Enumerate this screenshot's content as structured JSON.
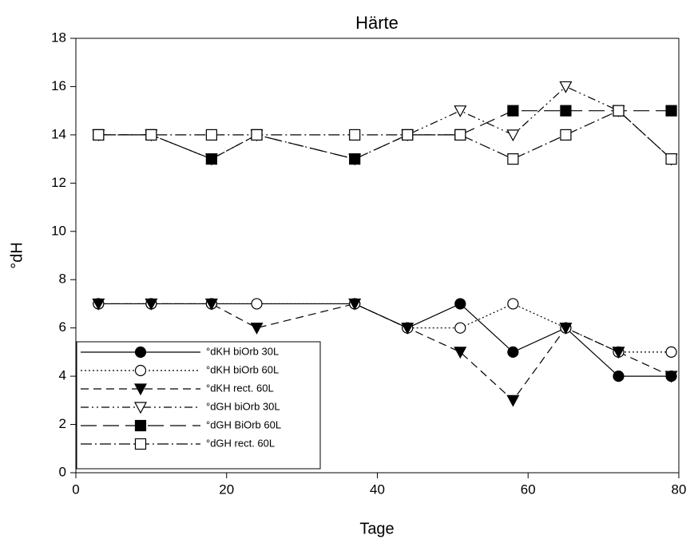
{
  "chart_data": {
    "type": "line",
    "title": "Härte",
    "x_label": "Tage",
    "y_label": "°dH",
    "xlim": [
      0,
      80
    ],
    "xticks": [
      0,
      20,
      40,
      60,
      80
    ],
    "ylim": [
      0,
      18
    ],
    "yticks": [
      0,
      2,
      4,
      6,
      8,
      10,
      12,
      14,
      16,
      18
    ],
    "legend": "lower left",
    "series": [
      {
        "name": "°dKH biOrb 30L",
        "color": "#000000",
        "marker": "circle",
        "filled": true,
        "dash": "solid",
        "x": [
          3,
          10,
          18,
          37,
          44,
          51,
          58,
          65,
          72,
          79
        ],
        "values": [
          7,
          7,
          7,
          7,
          6,
          7,
          5,
          6,
          4,
          4
        ]
      },
      {
        "name": "°dKH biOrb 60L",
        "color": "#000000",
        "marker": "circle",
        "filled": false,
        "dash": "dotted",
        "x": [
          3,
          10,
          18,
          24,
          37,
          44,
          51,
          58,
          65,
          72,
          79
        ],
        "values": [
          7,
          7,
          7,
          7,
          7,
          6,
          6,
          7,
          6,
          5,
          5
        ]
      },
      {
        "name": "°dKH rect. 60L",
        "color": "#000000",
        "marker": "triangle-down",
        "filled": true,
        "dash": "dashed",
        "x": [
          3,
          10,
          18,
          24,
          37,
          44,
          51,
          58,
          65,
          72,
          79
        ],
        "values": [
          7,
          7,
          7,
          6,
          7,
          6,
          5,
          3,
          6,
          5,
          4
        ]
      },
      {
        "name": "°dGH biOrb 30L",
        "color": "#000000",
        "marker": "triangle-down",
        "filled": false,
        "dash": "dash-dot-dot",
        "x": [
          3,
          10,
          18,
          24,
          37,
          44,
          51,
          58,
          65,
          72,
          79
        ],
        "values": [
          14,
          14,
          13,
          14,
          13,
          14,
          15,
          14,
          16,
          15,
          13
        ]
      },
      {
        "name": "°dGH BiOrb 60L",
        "color": "#000000",
        "marker": "square",
        "filled": true,
        "dash": "long-dash",
        "x": [
          3,
          10,
          18,
          24,
          37,
          44,
          51,
          58,
          65,
          72,
          79
        ],
        "values": [
          14,
          14,
          13,
          14,
          13,
          14,
          14,
          15,
          15,
          15,
          15
        ]
      },
      {
        "name": "°dGH rect. 60L",
        "color": "#000000",
        "marker": "square",
        "filled": false,
        "dash": "dash-dot",
        "x": [
          3,
          10,
          18,
          24,
          37,
          44,
          51,
          58,
          65,
          72,
          79
        ],
        "values": [
          14,
          14,
          14,
          14,
          14,
          14,
          14,
          13,
          14,
          15,
          13
        ]
      }
    ]
  }
}
